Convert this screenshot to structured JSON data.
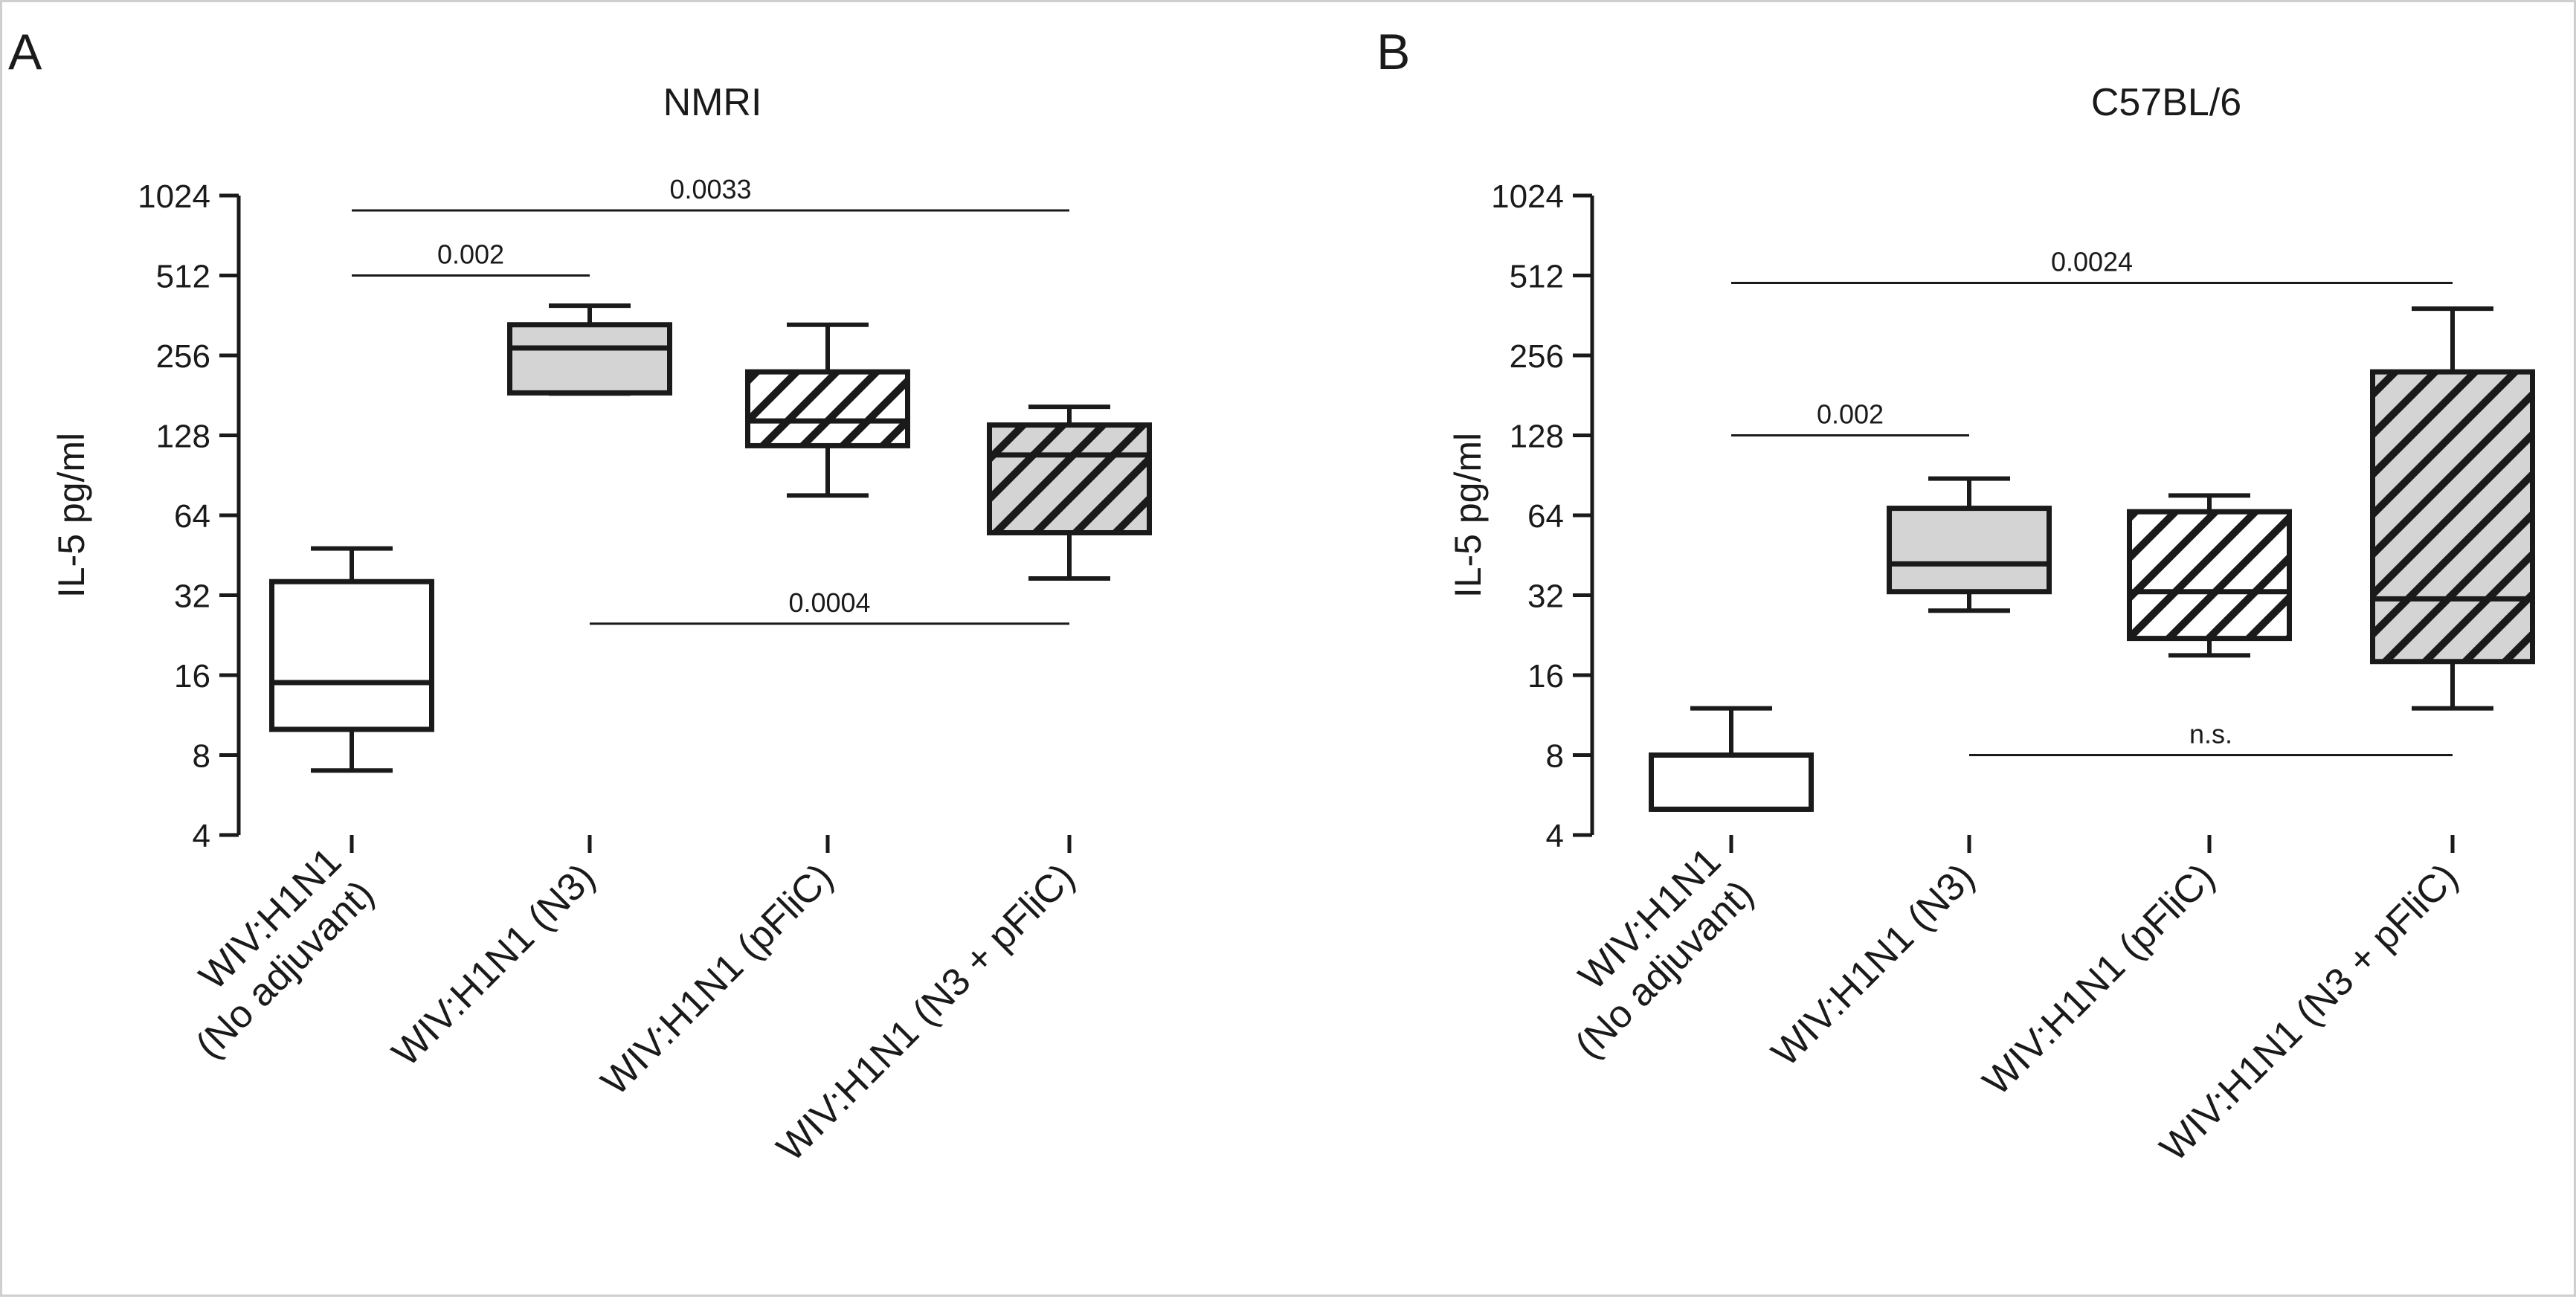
{
  "chart_data": [
    {
      "type": "box",
      "panel_letter": "A",
      "title": "NMRI",
      "ylabel": "IL-5 pg/ml",
      "xlabel": "",
      "yscale": "log2",
      "ylim": [
        4,
        1024
      ],
      "yticks": [
        4,
        8,
        16,
        32,
        64,
        128,
        256,
        512,
        1024
      ],
      "ytick_labels": [
        "4",
        "8",
        "16",
        "32",
        "64",
        "128",
        "256",
        "512",
        "1024"
      ],
      "categories": [
        [
          "WIV:H1N1",
          "(No adjuvant)"
        ],
        [
          "WIV:H1N1 (N3)"
        ],
        [
          "WIV:H1N1 (pFliC)"
        ],
        [
          "WIV:H1N1 (N3 + pFliC)"
        ]
      ],
      "boxes": [
        {
          "min": 7,
          "q1": 10,
          "median": 15,
          "q3": 36,
          "max": 48,
          "fill": "white"
        },
        {
          "min": 184,
          "q1": 185,
          "median": 273,
          "q3": 334,
          "max": 394,
          "fill": "gray"
        },
        {
          "min": 76,
          "q1": 117,
          "median": 145,
          "q3": 222,
          "max": 334,
          "fill": "white-hatched"
        },
        {
          "min": 37,
          "q1": 55,
          "median": 108,
          "q3": 140,
          "max": 164,
          "fill": "gray-hatched"
        }
      ],
      "significance": [
        {
          "from": 0,
          "to": 1,
          "label": "0.002",
          "y": 512
        },
        {
          "from": 0,
          "to": 3,
          "label": "0.0033",
          "y": 900
        },
        {
          "from": 1,
          "to": 3,
          "label": "0.0004",
          "y": 25
        }
      ]
    },
    {
      "type": "box",
      "panel_letter": "B",
      "title": "C57BL/6",
      "ylabel": "IL-5 pg/ml",
      "xlabel": "",
      "yscale": "log2",
      "ylim": [
        4,
        1024
      ],
      "yticks": [
        4,
        8,
        16,
        32,
        64,
        128,
        256,
        512,
        1024
      ],
      "ytick_labels": [
        "4",
        "8",
        "16",
        "32",
        "64",
        "128",
        "256",
        "512",
        "1024"
      ],
      "categories": [
        [
          "WIV:H1N1",
          "(No adjuvant)"
        ],
        [
          "WIV:H1N1 (N3)"
        ],
        [
          "WIV:H1N1 (pFliC)"
        ],
        [
          "WIV:H1N1 (N3 + pFliC)"
        ]
      ],
      "boxes": [
        {
          "min": 5,
          "q1": 5,
          "median": 5,
          "q3": 8,
          "max": 12,
          "fill": "white"
        },
        {
          "min": 28,
          "q1": 33,
          "median": 42,
          "q3": 68,
          "max": 88,
          "fill": "gray"
        },
        {
          "min": 19,
          "q1": 22,
          "median": 33,
          "q3": 66,
          "max": 76,
          "fill": "white-hatched"
        },
        {
          "min": 12,
          "q1": 18,
          "median": 31,
          "q3": 222,
          "max": 384,
          "fill": "gray-hatched"
        }
      ],
      "significance": [
        {
          "from": 0,
          "to": 1,
          "label": "0.002",
          "y": 128
        },
        {
          "from": 0,
          "to": 3,
          "label": "0.0024",
          "y": 480
        },
        {
          "from": 1,
          "to": 3,
          "label": "n.s.",
          "y": 8
        }
      ]
    }
  ],
  "colors": {
    "ink": "#1a1a1a",
    "gray_fill": "#d4d4d4",
    "white_fill": "#ffffff",
    "frame": "#cfcfcf"
  }
}
